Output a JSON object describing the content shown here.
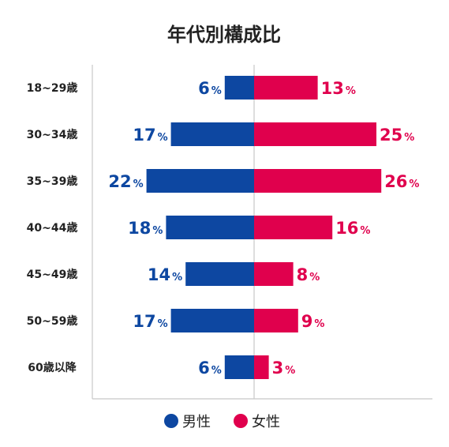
{
  "chart_data": {
    "type": "bar",
    "orientation": "horizontal-diverging",
    "title": "年代別構成比",
    "categories": [
      "18~29歳",
      "30~34歳",
      "35~39歳",
      "40~44歳",
      "45~49歳",
      "50~59歳",
      "60歳以降"
    ],
    "series": [
      {
        "name": "男性",
        "values": [
          6,
          17,
          22,
          18,
          14,
          17,
          6
        ],
        "color": "#0d47a1",
        "side": "left"
      },
      {
        "name": "女性",
        "values": [
          13,
          25,
          26,
          16,
          8,
          9,
          3
        ],
        "color": "#e0004d",
        "side": "right"
      }
    ],
    "value_suffix": "%",
    "legend_position": "bottom-center",
    "grid": false,
    "axis_color": "#c8c8c8",
    "text_color": "#222222"
  }
}
